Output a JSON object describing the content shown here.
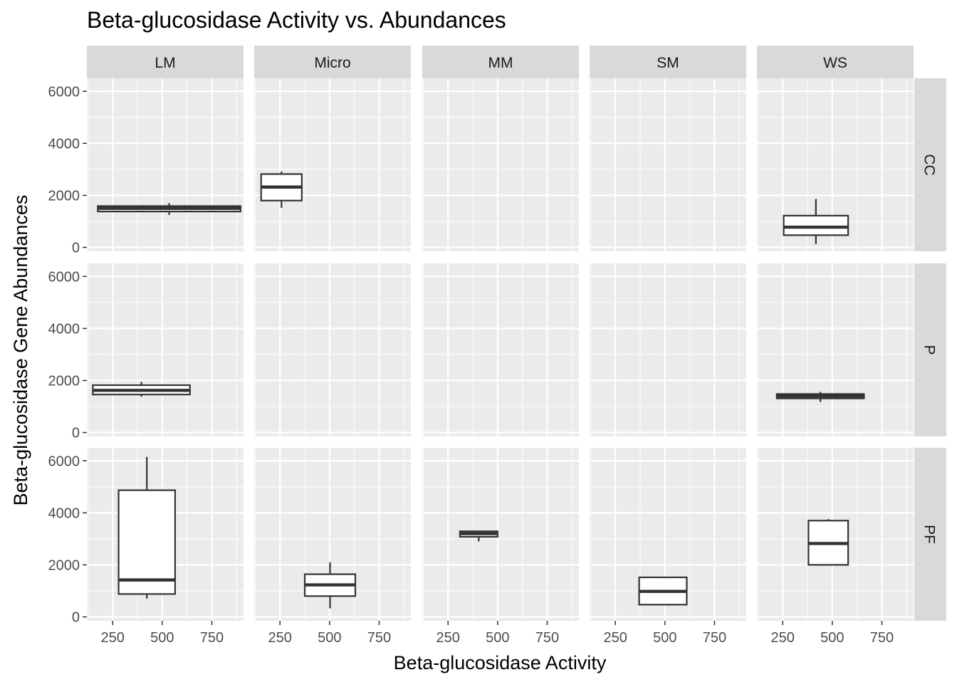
{
  "chart_data": {
    "type": "box",
    "title": "Beta-glucosidase Activity vs. Abundances",
    "xlabel": "Beta-glucosidase Activity",
    "ylabel": "Beta-glucosidase Gene Abundances",
    "column_facets": [
      "LM",
      "Micro",
      "MM",
      "SM",
      "WS"
    ],
    "row_facets": [
      "CC",
      "P",
      "PF"
    ],
    "xlim": [
      120,
      910
    ],
    "ylim": [
      -150,
      6500
    ],
    "x_ticks": [
      250,
      500,
      750
    ],
    "x_tick_labels": [
      "250",
      "500",
      "750"
    ],
    "y_ticks": [
      0,
      2000,
      4000,
      6000
    ],
    "y_tick_labels": [
      "0",
      "2000",
      "4000",
      "6000"
    ],
    "grid": true,
    "legend": "none",
    "boxes": [
      {
        "row": "CC",
        "col": "LM",
        "x_min": 175,
        "x_max": 895,
        "lower_whisker": 1250,
        "q1": 1380,
        "median": 1500,
        "q3": 1590,
        "upper_whisker": 1700
      },
      {
        "row": "CC",
        "col": "Micro",
        "x_min": 155,
        "x_max": 360,
        "lower_whisker": 1520,
        "q1": 1800,
        "median": 2320,
        "q3": 2820,
        "upper_whisker": 2920
      },
      {
        "row": "CC",
        "col": "WS",
        "x_min": 255,
        "x_max": 580,
        "lower_whisker": 130,
        "q1": 470,
        "median": 780,
        "q3": 1220,
        "upper_whisker": 1860
      },
      {
        "row": "P",
        "col": "LM",
        "x_min": 150,
        "x_max": 640,
        "lower_whisker": 1380,
        "q1": 1460,
        "median": 1620,
        "q3": 1820,
        "upper_whisker": 1950
      },
      {
        "row": "P",
        "col": "WS",
        "x_min": 220,
        "x_max": 660,
        "lower_whisker": 1180,
        "q1": 1310,
        "median": 1400,
        "q3": 1480,
        "upper_whisker": 1560
      },
      {
        "row": "PF",
        "col": "LM",
        "x_min": 280,
        "x_max": 565,
        "lower_whisker": 700,
        "q1": 880,
        "median": 1420,
        "q3": 4870,
        "upper_whisker": 6150
      },
      {
        "row": "PF",
        "col": "Micro",
        "x_min": 375,
        "x_max": 630,
        "lower_whisker": 330,
        "q1": 800,
        "median": 1230,
        "q3": 1640,
        "upper_whisker": 2100
      },
      {
        "row": "PF",
        "col": "MM",
        "x_min": 310,
        "x_max": 500,
        "lower_whisker": 2900,
        "q1": 3080,
        "median": 3200,
        "q3": 3290,
        "upper_whisker": 3300
      },
      {
        "row": "PF",
        "col": "SM",
        "x_min": 370,
        "x_max": 610,
        "lower_whisker": 470,
        "q1": 470,
        "median": 980,
        "q3": 1520,
        "upper_whisker": 1520
      },
      {
        "row": "PF",
        "col": "WS",
        "x_min": 380,
        "x_max": 580,
        "lower_whisker": 2000,
        "q1": 2000,
        "median": 2820,
        "q3": 3700,
        "upper_whisker": 3760
      }
    ]
  }
}
